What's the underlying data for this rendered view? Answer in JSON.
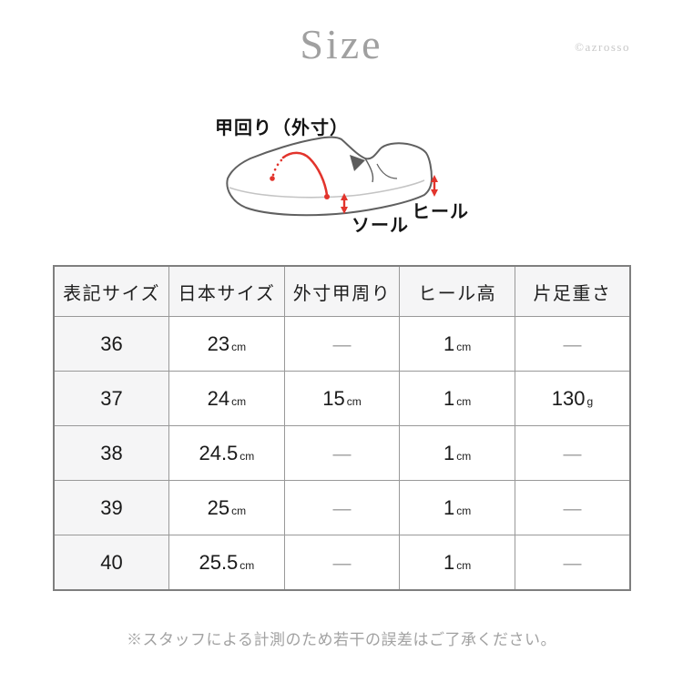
{
  "page": {
    "title": "Size",
    "watermark": "©azrosso",
    "footnote": "※スタッフによる計測のため若干の誤差はご了承ください。"
  },
  "diagram": {
    "instep_label": "甲回り（外寸）",
    "sole_label": "ソール",
    "heel_label": "ヒール",
    "accent_color": "#e2342c",
    "outline_color": "#606060",
    "sole_line_color": "#c4c4c4"
  },
  "table": {
    "headers": [
      "表記サイズ",
      "日本サイズ",
      "外寸甲周り",
      "ヒール高",
      "片足重さ"
    ],
    "rows": [
      [
        {
          "v": "36"
        },
        {
          "v": "23",
          "u": "cm"
        },
        {
          "v": "—"
        },
        {
          "v": "1",
          "u": "cm"
        },
        {
          "v": "—"
        }
      ],
      [
        {
          "v": "37"
        },
        {
          "v": "24",
          "u": "cm"
        },
        {
          "v": "15",
          "u": "cm"
        },
        {
          "v": "1",
          "u": "cm"
        },
        {
          "v": "130",
          "u": "g"
        }
      ],
      [
        {
          "v": "38"
        },
        {
          "v": "24.5",
          "u": "cm"
        },
        {
          "v": "—"
        },
        {
          "v": "1",
          "u": "cm"
        },
        {
          "v": "—"
        }
      ],
      [
        {
          "v": "39"
        },
        {
          "v": "25",
          "u": "cm"
        },
        {
          "v": "—"
        },
        {
          "v": "1",
          "u": "cm"
        },
        {
          "v": "—"
        }
      ],
      [
        {
          "v": "40"
        },
        {
          "v": "25.5",
          "u": "cm"
        },
        {
          "v": "—"
        },
        {
          "v": "1",
          "u": "cm"
        },
        {
          "v": "—"
        }
      ]
    ],
    "header_bg": "#f5f5f6",
    "border_color": "#999999"
  }
}
